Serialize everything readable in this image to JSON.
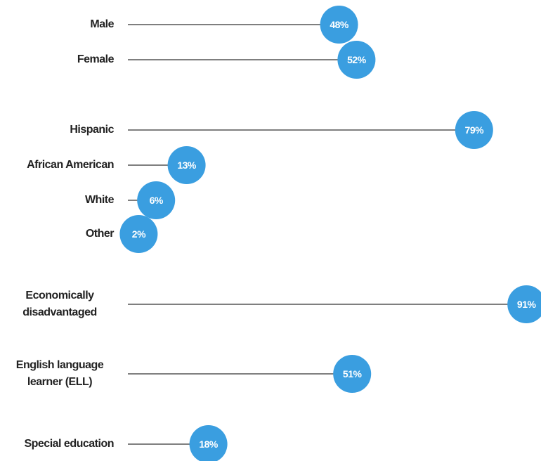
{
  "chart_data": {
    "type": "lollipop",
    "categories": [
      "Male",
      "Female",
      "Hispanic",
      "African American",
      "White",
      "Other",
      "Economically disadvantaged",
      "English language learner (ELL)",
      "Special education"
    ],
    "values": [
      48,
      52,
      79,
      13,
      6,
      2,
      91,
      51,
      18
    ],
    "value_labels": [
      "48%",
      "52%",
      "79%",
      "13%",
      "6%",
      "2%",
      "91%",
      "51%",
      "18%"
    ],
    "color": "#3a9ee0"
  }
}
